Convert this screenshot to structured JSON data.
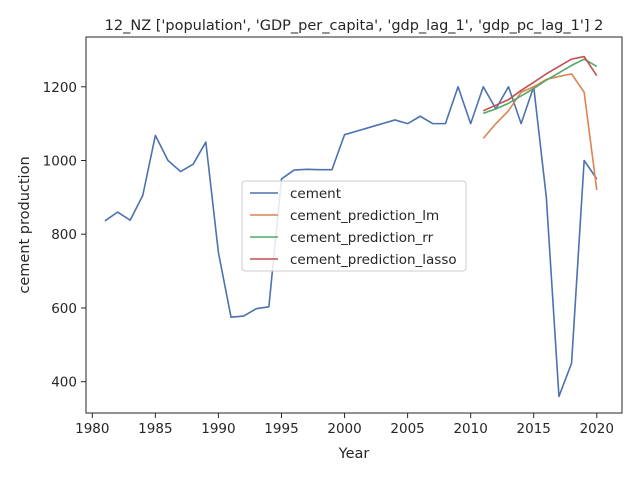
{
  "chart_data": {
    "type": "line",
    "title": "12_NZ ['population', 'GDP_per_capita', 'gdp_lag_1', 'gdp_pc_lag_1'] 2",
    "xlabel": "Year",
    "ylabel": "cement production",
    "xlim": [
      1979.5,
      2022
    ],
    "ylim": [
      315,
      1335
    ],
    "xticks": [
      1980,
      1985,
      1990,
      1995,
      2000,
      2005,
      2010,
      2015,
      2020
    ],
    "yticks": [
      400,
      600,
      800,
      1000,
      1200
    ],
    "grid": false,
    "legend_position": "center",
    "series": [
      {
        "name": "cement",
        "color": "#4c72b0",
        "x": [
          1981,
          1982,
          1983,
          1984,
          1985,
          1986,
          1987,
          1988,
          1989,
          1990,
          1991,
          1992,
          1993,
          1994,
          1995,
          1996,
          1997,
          1998,
          1999,
          2000,
          2001,
          2002,
          2003,
          2004,
          2005,
          2006,
          2007,
          2008,
          2009,
          2010,
          2011,
          2012,
          2013,
          2014,
          2015,
          2016,
          2017,
          2018,
          2019,
          2020
        ],
        "y": [
          836,
          860,
          838,
          905,
          1068,
          1000,
          970,
          990,
          1050,
          750,
          575,
          578,
          598,
          603,
          950,
          974,
          976,
          975,
          975,
          1070,
          1080,
          1090,
          1100,
          1110,
          1100,
          1120,
          1100,
          1100,
          1200,
          1100,
          1200,
          1140,
          1200,
          1100,
          1200,
          900,
          360,
          450,
          1000,
          950
        ]
      },
      {
        "name": "cement_prediction_lm",
        "color": "#dd8452",
        "x": [
          2011,
          2012,
          2013,
          2014,
          2015,
          2016,
          2017,
          2018,
          2019,
          2020
        ],
        "y": [
          1060,
          1100,
          1135,
          1185,
          1200,
          1220,
          1228,
          1235,
          1185,
          920
        ]
      },
      {
        "name": "cement_prediction_rr",
        "color": "#55a868",
        "x": [
          2011,
          2012,
          2013,
          2014,
          2015,
          2016,
          2017,
          2018,
          2019,
          2020
        ],
        "y": [
          1128,
          1140,
          1155,
          1175,
          1195,
          1218,
          1238,
          1258,
          1275,
          1255
        ]
      },
      {
        "name": "cement_prediction_lasso",
        "color": "#c44e52",
        "x": [
          2011,
          2012,
          2013,
          2014,
          2015,
          2016,
          2017,
          2018,
          2019,
          2020
        ],
        "y": [
          1135,
          1150,
          1165,
          1190,
          1212,
          1235,
          1255,
          1275,
          1282,
          1230
        ]
      }
    ]
  }
}
